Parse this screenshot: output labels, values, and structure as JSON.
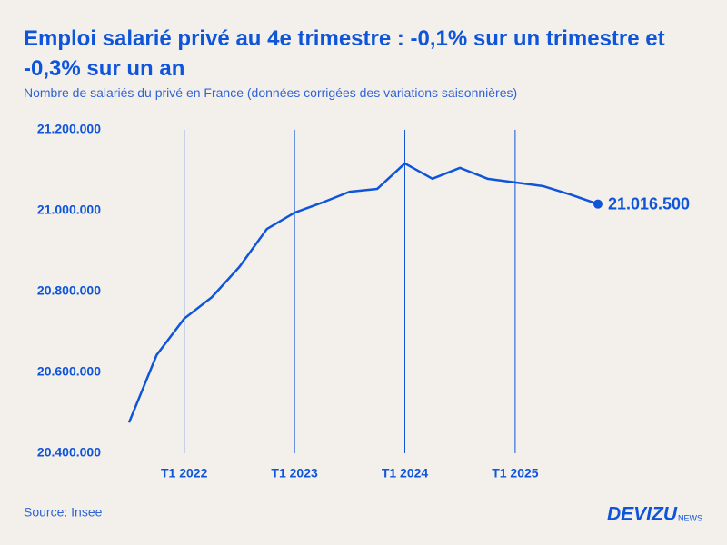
{
  "chart_data": {
    "type": "line",
    "title": "Emploi salarié privé au 4e trimestre : -0,1% sur un trimestre et -0,3% sur un an",
    "subtitle": "Nombre de salariés du privé en France (données corrigées des variations saisonnières)",
    "categories": [
      null,
      null,
      "T1 2022",
      null,
      null,
      null,
      "T1 2023",
      null,
      null,
      null,
      "T1 2024",
      null,
      null,
      null,
      "T1 2025",
      null,
      null,
      null
    ],
    "values": [
      20476000,
      20643000,
      20733000,
      20786000,
      20861000,
      20955000,
      20995000,
      21020000,
      21047000,
      21054000,
      21117000,
      21079000,
      21106000,
      21079000,
      21070000,
      21061000,
      21040000,
      21016500
    ],
    "value_labels": [
      null,
      null,
      null,
      null,
      null,
      null,
      null,
      null,
      null,
      null,
      null,
      null,
      null,
      null,
      null,
      null,
      null,
      "21.016.500"
    ],
    "color": "#0f55d9",
    "ylim": [
      20400000,
      21200000
    ],
    "yticks": [
      {
        "value": 20400000,
        "label": "20.400.000"
      },
      {
        "value": 20600000,
        "label": "20.600.000"
      },
      {
        "value": 20800000,
        "label": "20.800.000"
      },
      {
        "value": 21000000,
        "label": "21.000.000"
      },
      {
        "value": 21200000,
        "label": "21.200.000"
      }
    ],
    "xgrid": true,
    "source": "Source: Insee",
    "brand": "DEVIZU",
    "brand_suffix": "NEWS"
  }
}
